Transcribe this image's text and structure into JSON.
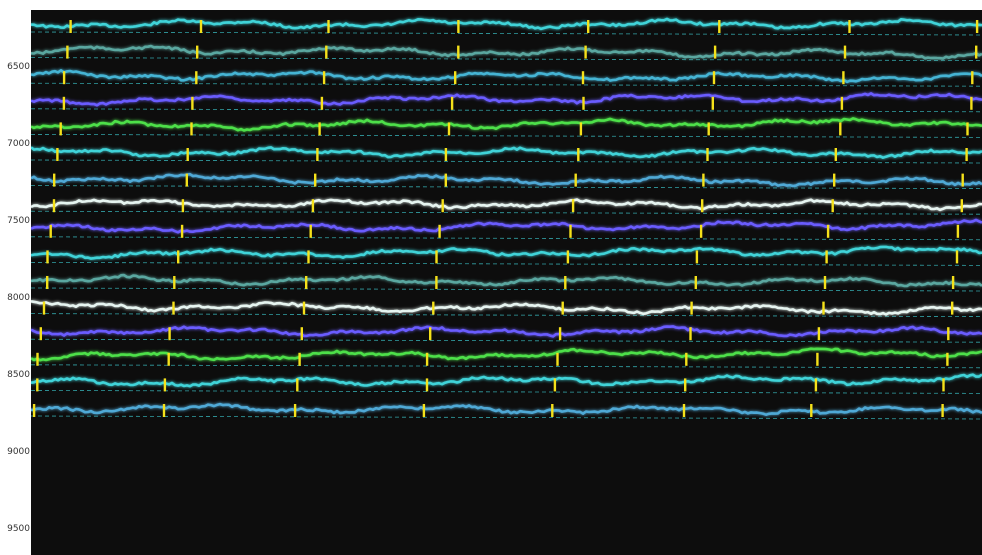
{
  "chart_data": {
    "type": "line",
    "title": "",
    "xlabel": "",
    "ylabel": "",
    "ylim": [
      6200,
      9750
    ],
    "y_ticks": [
      6500,
      7000,
      7500,
      8000,
      8500,
      9000,
      9500
    ],
    "grid": false,
    "background_color": "#0d0d0d",
    "marker_color": "#f5e11a",
    "baseline_color": "#3fd3d8",
    "palette": [
      "#3fd3d8",
      "#5aa7a0",
      "#44b4d4",
      "#6b5cff",
      "#4ee04a",
      "#3fd3d8",
      "#4fa9d6",
      "#e6f4f0",
      "#6b5cff",
      "#3fd3d8",
      "#5aa7a0",
      "#e6f4f0",
      "#6b5cff",
      "#4ee04a",
      "#3fd3d8",
      "#4fa9d6"
    ],
    "row_count": 16
  }
}
